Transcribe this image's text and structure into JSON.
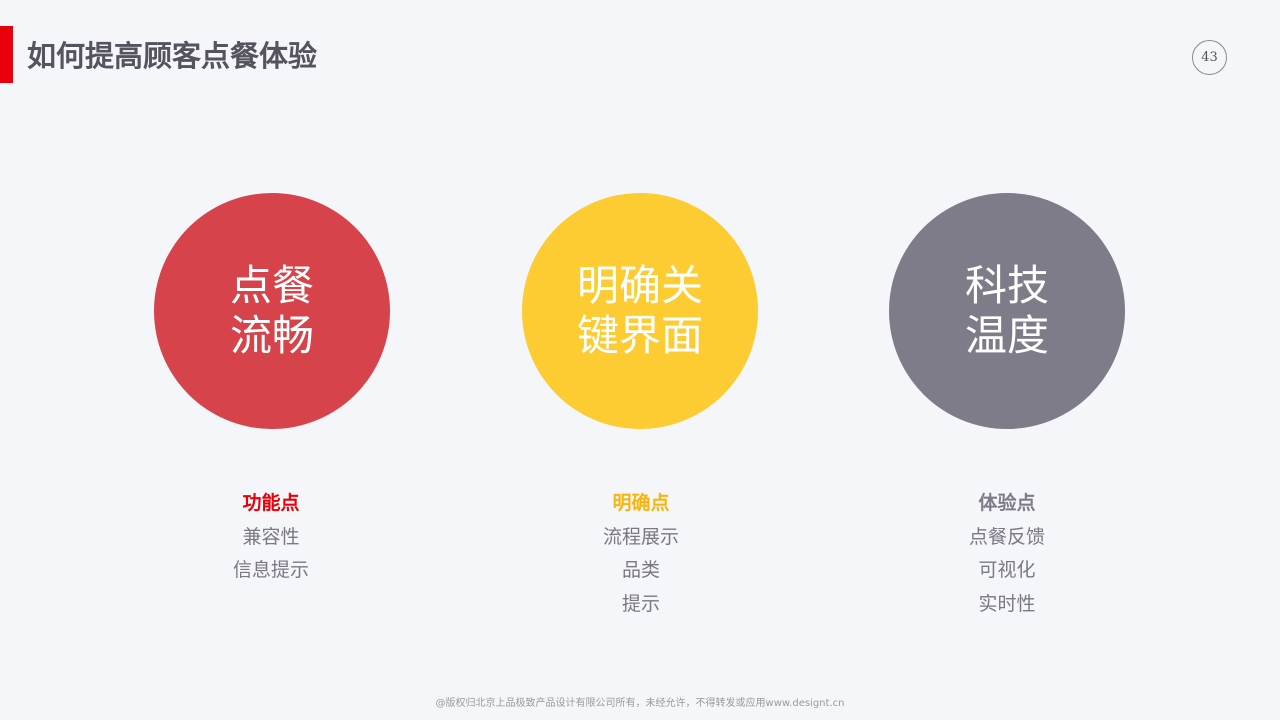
{
  "header": {
    "title": "如何提高顾客点餐体验",
    "page_number": "43",
    "accent_color": "#E8000B"
  },
  "pillars": [
    {
      "circle_lines": [
        "点餐",
        "流畅"
      ],
      "color": "#D6434B",
      "heading": "功能点",
      "heading_color": "#E8000B",
      "items": [
        "兼容性",
        "信息提示"
      ]
    },
    {
      "circle_lines": [
        "明确关",
        "键界面"
      ],
      "color": "#FCCC32",
      "heading": "明确点",
      "heading_color": "#F8B50C",
      "items": [
        "流程展示",
        "品类",
        "提示"
      ]
    },
    {
      "circle_lines": [
        "科技",
        "温度"
      ],
      "color": "#7E7C88",
      "heading": "体验点",
      "heading_color": "#7E7C88",
      "items": [
        "点餐反馈",
        "可视化",
        "实时性"
      ]
    }
  ],
  "footer": {
    "copyright": "@版权归北京上品极致产品设计有限公司所有，未经允许，不得转发或应用www.designt.cn"
  }
}
